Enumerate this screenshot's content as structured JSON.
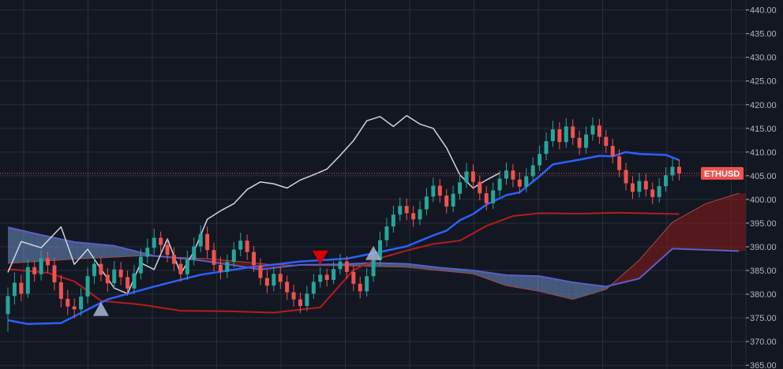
{
  "chart_data": {
    "type": "candlestick",
    "symbol_tag": "ETHUSD",
    "current_price": 405.5,
    "y_axis": {
      "ticks": [
        "440.00",
        "435.00",
        "430.00",
        "425.00",
        "420.00",
        "415.00",
        "410.00",
        "405.00",
        "400.00",
        "395.00",
        "390.00",
        "385.00",
        "380.00",
        "375.00",
        "370.00",
        "365.00"
      ],
      "ylim": [
        364.2,
        442.1
      ]
    },
    "grid": true,
    "colors": {
      "background": "#131722",
      "up": "#26a69a",
      "down": "#ef5350",
      "tenkan": "#2962ff",
      "kijun": "#b71c1c",
      "chikou": "#d1d4dc",
      "span_a": "#5b5fc7",
      "span_b": "#8b1a1a",
      "cloud_bull": "#6d8fc7",
      "cloud_bear": "#8b1a1a",
      "price_tag": "#ef5350"
    },
    "candles": [
      [
        375.8,
        379.6,
        372.1,
        381.4
      ],
      [
        379.6,
        382.4,
        377.8,
        384.6
      ],
      [
        382.4,
        380.1,
        378.5,
        384.1
      ],
      [
        380.1,
        385.7,
        379.2,
        387.4
      ],
      [
        385.7,
        384.2,
        382.6,
        387.1
      ],
      [
        384.2,
        387.6,
        382.9,
        389.3
      ],
      [
        387.6,
        386.1,
        384.5,
        389.0
      ],
      [
        386.1,
        382.5,
        380.8,
        387.7
      ],
      [
        382.5,
        379.0,
        377.2,
        384.1
      ],
      [
        379.0,
        377.4,
        375.6,
        380.9
      ],
      [
        377.4,
        376.8,
        374.9,
        379.1
      ],
      [
        376.8,
        379.5,
        375.4,
        381.3
      ],
      [
        379.5,
        383.8,
        378.1,
        385.6
      ],
      [
        383.8,
        386.4,
        382.2,
        388.1
      ],
      [
        386.4,
        384.1,
        382.7,
        387.9
      ],
      [
        384.1,
        382.3,
        380.5,
        385.5
      ],
      [
        382.3,
        385.2,
        381.0,
        387.0
      ],
      [
        385.2,
        383.6,
        381.9,
        386.8
      ],
      [
        383.6,
        381.2,
        379.7,
        385.0
      ],
      [
        381.2,
        384.4,
        380.0,
        386.2
      ],
      [
        384.4,
        387.9,
        383.1,
        389.6
      ],
      [
        387.9,
        389.8,
        386.5,
        391.7
      ],
      [
        389.8,
        391.9,
        388.4,
        393.8
      ],
      [
        391.9,
        390.4,
        388.9,
        393.2
      ],
      [
        390.4,
        388.3,
        386.7,
        391.8
      ],
      [
        388.3,
        386.4,
        384.9,
        389.9
      ],
      [
        386.4,
        384.2,
        382.6,
        387.8
      ],
      [
        384.2,
        387.3,
        383.0,
        389.2
      ],
      [
        387.3,
        390.1,
        386.1,
        392.0
      ],
      [
        390.1,
        392.7,
        388.9,
        394.5
      ],
      [
        392.7,
        389.3,
        387.6,
        394.3
      ],
      [
        389.3,
        386.2,
        384.8,
        390.8
      ],
      [
        386.2,
        384.7,
        383.1,
        387.9
      ],
      [
        384.7,
        386.8,
        383.4,
        388.4
      ],
      [
        386.8,
        389.4,
        385.6,
        391.0
      ],
      [
        389.4,
        391.3,
        388.0,
        393.0
      ],
      [
        391.3,
        388.9,
        387.2,
        392.6
      ],
      [
        388.9,
        386.1,
        384.7,
        390.2
      ],
      [
        386.1,
        383.4,
        381.9,
        387.6
      ],
      [
        383.4,
        381.8,
        380.2,
        385.0
      ],
      [
        381.8,
        384.3,
        380.6,
        385.9
      ],
      [
        384.3,
        382.6,
        381.1,
        385.8
      ],
      [
        382.6,
        380.4,
        378.8,
        383.9
      ],
      [
        380.4,
        378.9,
        377.4,
        382.0
      ],
      [
        378.9,
        377.5,
        376.0,
        380.3
      ],
      [
        377.5,
        380.1,
        376.4,
        381.8
      ],
      [
        380.1,
        382.6,
        379.0,
        384.3
      ],
      [
        382.6,
        384.1,
        381.4,
        385.7
      ],
      [
        384.1,
        383.0,
        381.6,
        385.4
      ],
      [
        383.0,
        385.3,
        382.1,
        386.9
      ],
      [
        385.3,
        386.9,
        384.1,
        388.5
      ],
      [
        386.9,
        384.7,
        383.2,
        388.0
      ],
      [
        384.7,
        382.2,
        380.6,
        386.1
      ],
      [
        382.2,
        380.6,
        379.1,
        383.7
      ],
      [
        380.6,
        383.8,
        379.5,
        385.5
      ],
      [
        383.8,
        387.2,
        382.6,
        389.0
      ],
      [
        387.2,
        391.4,
        386.0,
        393.2
      ],
      [
        391.4,
        394.3,
        390.1,
        396.1
      ],
      [
        394.3,
        396.8,
        393.0,
        398.7
      ],
      [
        396.8,
        398.6,
        395.4,
        400.4
      ],
      [
        398.6,
        397.1,
        395.6,
        400.2
      ],
      [
        397.1,
        395.8,
        394.2,
        398.6
      ],
      [
        395.8,
        397.9,
        394.6,
        399.7
      ],
      [
        397.9,
        400.6,
        396.7,
        402.4
      ],
      [
        400.6,
        402.9,
        399.4,
        404.6
      ],
      [
        402.9,
        400.8,
        399.3,
        404.3
      ],
      [
        400.8,
        398.5,
        397.0,
        402.2
      ],
      [
        398.5,
        401.2,
        397.3,
        402.9
      ],
      [
        401.2,
        403.6,
        400.0,
        405.3
      ],
      [
        403.6,
        405.9,
        402.4,
        407.7
      ],
      [
        405.9,
        403.7,
        402.1,
        407.4
      ],
      [
        403.7,
        401.3,
        399.8,
        405.1
      ],
      [
        401.3,
        399.2,
        397.7,
        402.8
      ],
      [
        399.2,
        401.9,
        398.0,
        403.6
      ],
      [
        401.9,
        404.4,
        400.7,
        406.1
      ],
      [
        404.4,
        406.1,
        403.1,
        407.8
      ],
      [
        406.1,
        404.2,
        402.6,
        407.5
      ],
      [
        404.2,
        402.7,
        401.2,
        405.7
      ],
      [
        402.7,
        404.9,
        401.5,
        406.6
      ],
      [
        404.9,
        407.2,
        403.7,
        408.9
      ],
      [
        407.2,
        409.6,
        406.0,
        411.4
      ],
      [
        409.6,
        412.3,
        408.3,
        414.1
      ],
      [
        412.3,
        414.8,
        411.1,
        416.6
      ],
      [
        414.8,
        412.1,
        410.6,
        416.3
      ],
      [
        412.1,
        415.4,
        410.9,
        417.2
      ],
      [
        415.4,
        413.0,
        411.5,
        416.9
      ],
      [
        413.0,
        410.9,
        409.4,
        414.5
      ],
      [
        410.9,
        413.7,
        409.7,
        415.4
      ],
      [
        413.7,
        415.6,
        412.4,
        417.3
      ],
      [
        415.6,
        413.2,
        411.7,
        417.0
      ],
      [
        413.2,
        411.3,
        409.8,
        414.7
      ],
      [
        411.3,
        409.1,
        407.6,
        412.8
      ],
      [
        409.1,
        406.2,
        404.7,
        410.6
      ],
      [
        406.2,
        403.4,
        401.9,
        407.7
      ],
      [
        403.4,
        401.6,
        400.1,
        404.9
      ],
      [
        401.6,
        403.9,
        400.4,
        405.6
      ],
      [
        403.9,
        402.1,
        400.6,
        405.4
      ],
      [
        402.1,
        400.5,
        399.0,
        403.6
      ],
      [
        400.5,
        402.8,
        399.3,
        404.5
      ],
      [
        402.8,
        405.1,
        401.6,
        406.8
      ],
      [
        405.1,
        406.9,
        403.9,
        408.6
      ],
      [
        406.9,
        405.5,
        404.0,
        408.4
      ]
    ],
    "tenkan": [
      [
        0,
        374.5
      ],
      [
        3,
        373.7
      ],
      [
        8,
        373.9
      ],
      [
        15,
        378.9
      ],
      [
        22,
        381.6
      ],
      [
        29,
        384.1
      ],
      [
        36,
        385.6
      ],
      [
        44,
        386.9
      ],
      [
        51,
        387.5
      ],
      [
        56,
        388.9
      ],
      [
        60,
        390.1
      ],
      [
        64,
        392.4
      ],
      [
        66,
        393.4
      ],
      [
        68,
        395.6
      ],
      [
        70,
        396.9
      ],
      [
        72,
        398.9
      ],
      [
        75,
        400.9
      ],
      [
        77,
        401.5
      ],
      [
        80,
        404.9
      ],
      [
        82,
        407.4
      ],
      [
        86,
        408.4
      ],
      [
        89,
        409.2
      ],
      [
        91,
        409.1
      ],
      [
        93,
        410.0
      ],
      [
        95,
        409.6
      ],
      [
        99,
        409.4
      ],
      [
        101,
        408.3
      ]
    ],
    "kijun": [
      [
        0,
        385.3
      ],
      [
        6,
        384.5
      ],
      [
        10,
        382.7
      ],
      [
        14,
        378.6
      ],
      [
        20,
        377.8
      ],
      [
        26,
        376.5
      ],
      [
        33,
        376.4
      ],
      [
        40,
        376.1
      ],
      [
        47,
        377.2
      ],
      [
        52,
        385.1
      ],
      [
        56,
        387.6
      ],
      [
        60,
        389.2
      ],
      [
        64,
        390.6
      ],
      [
        68,
        391.3
      ],
      [
        72,
        394.4
      ],
      [
        76,
        396.5
      ],
      [
        80,
        397.1
      ],
      [
        86,
        397.0
      ],
      [
        92,
        397.2
      ],
      [
        101,
        396.9
      ]
    ],
    "chikou": [
      [
        0,
        384.6
      ],
      [
        2,
        391.1
      ],
      [
        5,
        389.8
      ],
      [
        8,
        394.2
      ],
      [
        10,
        386.3
      ],
      [
        12,
        389.5
      ],
      [
        14,
        385.3
      ],
      [
        16,
        381.3
      ],
      [
        18,
        380.1
      ],
      [
        20,
        386.6
      ],
      [
        22,
        385.2
      ],
      [
        24,
        391.7
      ],
      [
        26,
        384.3
      ],
      [
        28,
        389.0
      ],
      [
        30,
        395.8
      ],
      [
        32,
        397.6
      ],
      [
        34,
        399.1
      ],
      [
        36,
        402.1
      ],
      [
        38,
        403.7
      ],
      [
        40,
        403.3
      ],
      [
        42,
        402.4
      ],
      [
        44,
        404.1
      ],
      [
        46,
        405.2
      ],
      [
        48,
        406.4
      ],
      [
        50,
        409.3
      ],
      [
        52,
        412.4
      ],
      [
        54,
        416.6
      ],
      [
        56,
        417.5
      ],
      [
        58,
        415.4
      ],
      [
        60,
        417.7
      ],
      [
        62,
        415.9
      ],
      [
        64,
        415.0
      ],
      [
        66,
        410.9
      ],
      [
        68,
        405.2
      ],
      [
        70,
        402.4
      ],
      [
        72,
        404.1
      ],
      [
        74,
        405.6
      ]
    ],
    "span_a": [
      [
        0,
        394.1
      ],
      [
        5,
        392.5
      ],
      [
        10,
        391.0
      ],
      [
        16,
        390.2
      ],
      [
        22,
        388.1
      ],
      [
        28,
        387.3
      ],
      [
        34,
        386.1
      ],
      [
        38,
        385.2
      ],
      [
        44,
        386.2
      ],
      [
        50,
        386.3
      ],
      [
        55,
        386.6
      ],
      [
        60,
        386.4
      ],
      [
        65,
        385.6
      ],
      [
        70,
        385.0
      ],
      [
        75,
        384.0
      ],
      [
        80,
        383.8
      ],
      [
        85,
        382.5
      ],
      [
        90,
        381.6
      ],
      [
        95,
        383.3
      ],
      [
        100,
        389.6
      ],
      [
        110,
        389.1
      ]
    ],
    "span_b": [
      [
        0,
        386.5
      ],
      [
        10,
        387.4
      ],
      [
        20,
        388.1
      ],
      [
        30,
        387.5
      ],
      [
        40,
        386.2
      ],
      [
        50,
        386.0
      ],
      [
        60,
        385.7
      ],
      [
        64,
        385.1
      ],
      [
        70,
        384.3
      ],
      [
        75,
        381.8
      ],
      [
        80,
        380.6
      ],
      [
        85,
        378.9
      ],
      [
        90,
        381.0
      ],
      [
        95,
        387.2
      ],
      [
        100,
        395.2
      ],
      [
        105,
        399.1
      ],
      [
        110,
        401.3
      ]
    ],
    "signals": [
      {
        "type": "bear",
        "index": 47,
        "price": 387.7
      },
      {
        "type": "bull",
        "index": 55,
        "price": 388.7
      },
      {
        "type": "bull",
        "index": 14,
        "price": 376.9
      }
    ]
  }
}
